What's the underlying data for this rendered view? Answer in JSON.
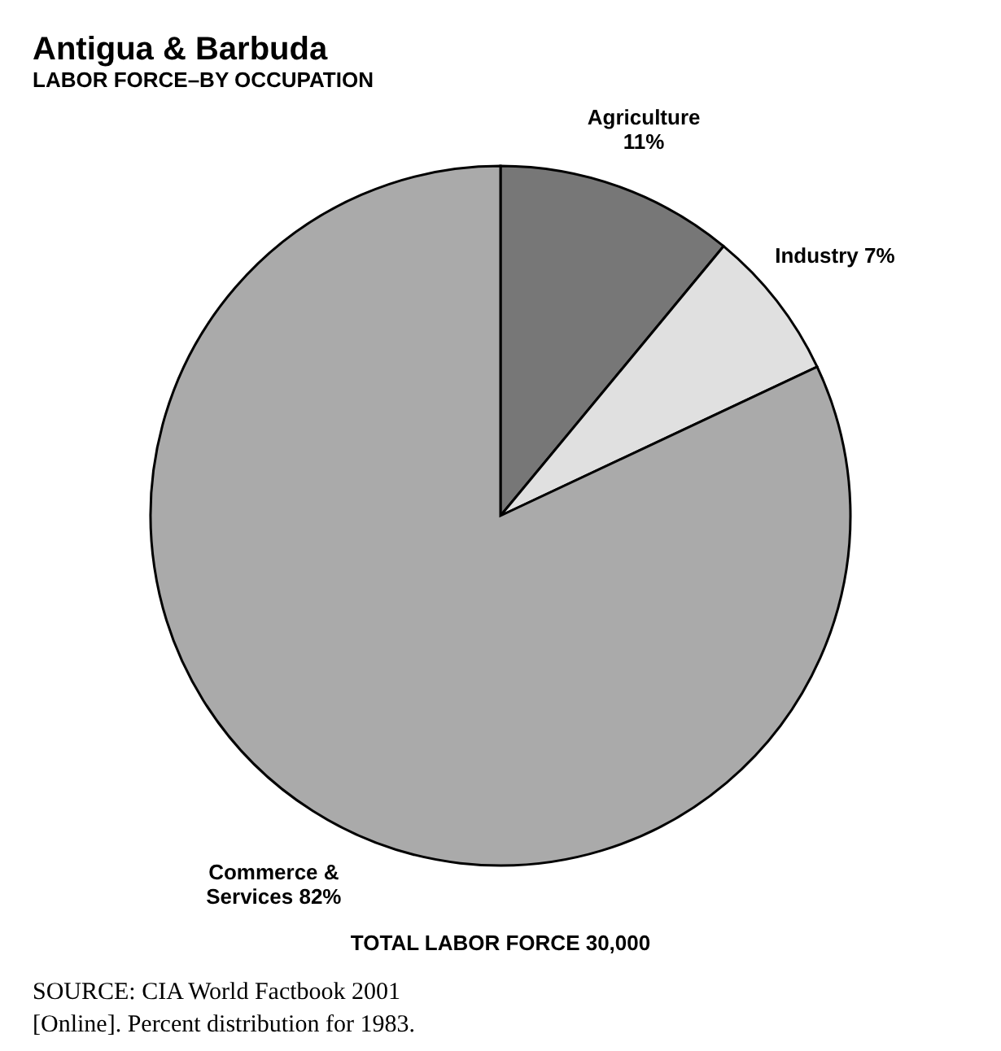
{
  "chart_data": {
    "type": "pie",
    "title": "Antigua & Barbuda",
    "subtitle": "LABOR FORCE–BY OCCUPATION",
    "categories": [
      "Agriculture",
      "Industry",
      "Commerce & Services"
    ],
    "values": [
      11,
      7,
      82
    ],
    "value_labels": [
      "11%",
      "7%",
      "82%"
    ],
    "colors": [
      "#777777",
      "#e0e0e0",
      "#aaaaaa"
    ],
    "legend": false,
    "annotations": [
      "TOTAL LABOR FORCE 30,000",
      "SOURCE: CIA World Factbook 2001 [Online]. Percent distribution for 1983."
    ]
  }
}
